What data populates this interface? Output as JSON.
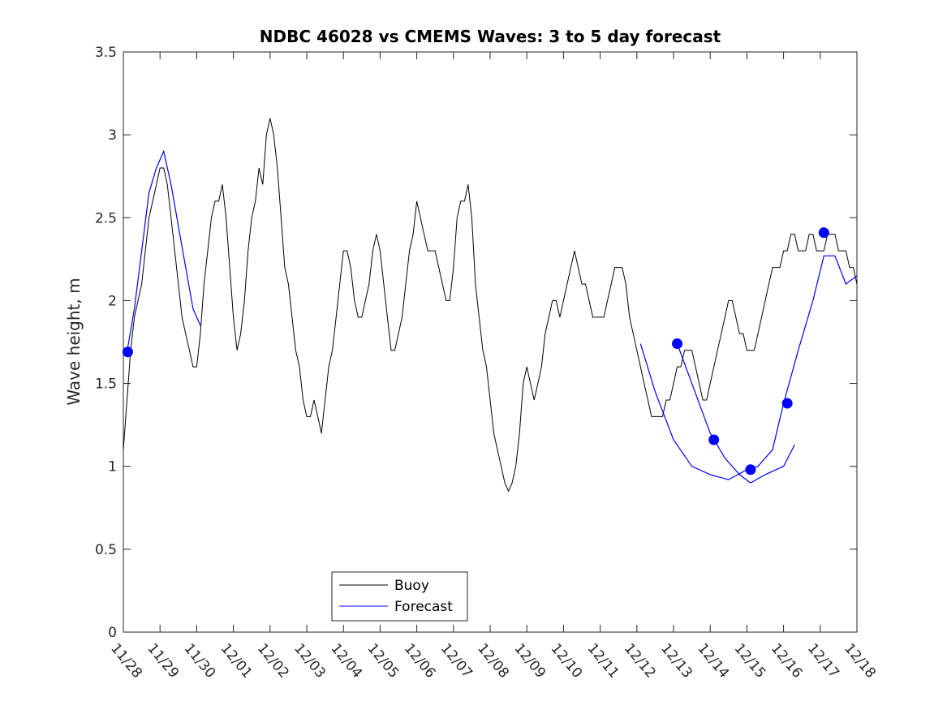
{
  "chart_data": {
    "type": "line",
    "title": "NDBC 46028 vs CMEMS Waves: 3 to 5 day forecast",
    "xlabel": "",
    "ylabel": "Wave height, m",
    "xlim": [
      0,
      20
    ],
    "ylim": [
      0,
      3.5
    ],
    "x_tick_labels": [
      "11/28",
      "11/29",
      "11/30",
      "12/01",
      "12/02",
      "12/03",
      "12/04",
      "12/05",
      "12/06",
      "12/07",
      "12/08",
      "12/09",
      "12/10",
      "12/11",
      "12/12",
      "12/13",
      "12/14",
      "12/15",
      "12/16",
      "12/17",
      "12/18"
    ],
    "y_ticks": [
      0,
      0.5,
      1,
      1.5,
      2,
      2.5,
      3,
      3.5
    ],
    "y_tick_labels": [
      "0",
      "0.5",
      "1",
      "1.5",
      "2",
      "2.5",
      "3",
      "3.5"
    ],
    "legend": {
      "placement": "bottom-center",
      "entries": [
        "Buoy",
        "Forecast"
      ]
    },
    "colors": {
      "buoy": "#000000",
      "forecast": "#0000ff"
    },
    "series": [
      {
        "name": "Buoy",
        "color": "#000000",
        "x": [
          0.0,
          0.1,
          0.2,
          0.3,
          0.4,
          0.5,
          0.6,
          0.7,
          0.8,
          0.9,
          1.0,
          1.1,
          1.2,
          1.3,
          1.4,
          1.5,
          1.6,
          1.7,
          1.8,
          1.9,
          2.0,
          2.1,
          2.2,
          2.3,
          2.4,
          2.5,
          2.6,
          2.7,
          2.8,
          2.9,
          3.0,
          3.1,
          3.2,
          3.3,
          3.4,
          3.5,
          3.6,
          3.7,
          3.8,
          3.9,
          4.0,
          4.1,
          4.2,
          4.3,
          4.4,
          4.5,
          4.6,
          4.7,
          4.8,
          4.9,
          5.0,
          5.1,
          5.2,
          5.3,
          5.4,
          5.5,
          5.6,
          5.7,
          5.8,
          5.9,
          6.0,
          6.1,
          6.2,
          6.3,
          6.4,
          6.5,
          6.6,
          6.7,
          6.8,
          6.9,
          7.0,
          7.1,
          7.2,
          7.3,
          7.4,
          7.5,
          7.6,
          7.7,
          7.8,
          7.9,
          8.0,
          8.1,
          8.2,
          8.3,
          8.4,
          8.5,
          8.6,
          8.7,
          8.8,
          8.9,
          9.0,
          9.1,
          9.2,
          9.3,
          9.4,
          9.5,
          9.6,
          9.7,
          9.8,
          9.9,
          10.0,
          10.1,
          10.2,
          10.3,
          10.4,
          10.5,
          10.6,
          10.7,
          10.8,
          10.9,
          11.0,
          11.1,
          11.2,
          11.3,
          11.4,
          11.5,
          11.6,
          11.7,
          11.8,
          11.9,
          12.0,
          12.1,
          12.2,
          12.3,
          12.4,
          12.5,
          12.6,
          12.7,
          12.8,
          12.9,
          13.0,
          13.1,
          13.2,
          13.3,
          13.4,
          13.5,
          13.6,
          13.7,
          13.8,
          13.9,
          14.0,
          14.1,
          14.2,
          14.3,
          14.4,
          14.5,
          14.6,
          14.7,
          14.8,
          14.9,
          15.0,
          15.1,
          15.2,
          15.3,
          15.4,
          15.5,
          15.6,
          15.7,
          15.8,
          15.9,
          16.0,
          16.1,
          16.2,
          16.3,
          16.4,
          16.5,
          16.6,
          16.7,
          16.8,
          16.9,
          17.0,
          17.1,
          17.2,
          17.3,
          17.4,
          17.5,
          17.6,
          17.7,
          17.8,
          17.9,
          18.0,
          18.1,
          18.2,
          18.3,
          18.4,
          18.5,
          18.6,
          18.7,
          18.8,
          18.9,
          19.0,
          19.1,
          19.2,
          19.3,
          19.4,
          19.5,
          19.6,
          19.7,
          19.8,
          19.9,
          20.0
        ],
        "values": [
          1.1,
          1.4,
          1.7,
          1.9,
          2.0,
          2.1,
          2.3,
          2.5,
          2.6,
          2.7,
          2.8,
          2.8,
          2.7,
          2.5,
          2.3,
          2.1,
          1.9,
          1.8,
          1.7,
          1.6,
          1.6,
          1.8,
          2.1,
          2.3,
          2.5,
          2.6,
          2.6,
          2.7,
          2.5,
          2.2,
          1.9,
          1.7,
          1.8,
          2.0,
          2.3,
          2.5,
          2.6,
          2.8,
          2.7,
          3.0,
          3.1,
          3.0,
          2.8,
          2.5,
          2.2,
          2.1,
          1.9,
          1.7,
          1.6,
          1.4,
          1.3,
          1.3,
          1.4,
          1.3,
          1.2,
          1.4,
          1.6,
          1.7,
          1.9,
          2.1,
          2.3,
          2.3,
          2.2,
          2.0,
          1.9,
          1.9,
          2.0,
          2.1,
          2.3,
          2.4,
          2.3,
          2.1,
          1.9,
          1.7,
          1.7,
          1.8,
          1.9,
          2.1,
          2.3,
          2.4,
          2.6,
          2.5,
          2.4,
          2.3,
          2.3,
          2.3,
          2.2,
          2.1,
          2.0,
          2.0,
          2.2,
          2.5,
          2.6,
          2.6,
          2.7,
          2.5,
          2.1,
          1.9,
          1.7,
          1.6,
          1.4,
          1.2,
          1.1,
          1.0,
          0.9,
          0.85,
          0.9,
          1.0,
          1.2,
          1.5,
          1.6,
          1.5,
          1.4,
          1.5,
          1.6,
          1.8,
          1.9,
          2.0,
          2.0,
          1.9,
          2.0,
          2.1,
          2.2,
          2.3,
          2.2,
          2.1,
          2.1,
          2.0,
          1.9,
          1.9,
          1.9,
          1.9,
          2.0,
          2.1,
          2.2,
          2.2,
          2.2,
          2.1,
          1.9,
          1.8,
          1.7,
          1.6,
          1.5,
          1.4,
          1.3,
          1.3,
          1.3,
          1.3,
          1.4,
          1.4,
          1.5,
          1.6,
          1.6,
          1.7,
          1.7,
          1.7,
          1.6,
          1.5,
          1.4,
          1.4,
          1.5,
          1.6,
          1.7,
          1.8,
          1.9,
          2.0,
          2.0,
          1.9,
          1.8,
          1.8,
          1.7,
          1.7,
          1.7,
          1.8,
          1.9,
          2.0,
          2.1,
          2.2,
          2.2,
          2.2,
          2.3,
          2.3,
          2.4,
          2.4,
          2.3,
          2.3,
          2.3,
          2.4,
          2.4,
          2.3,
          2.3,
          2.3,
          2.4,
          2.4,
          2.4,
          2.3,
          2.3,
          2.3,
          2.2,
          2.2,
          2.1
        ]
      },
      {
        "name": "Forecast",
        "color": "#0000ff",
        "x": [
          0.1,
          0.3,
          0.5,
          0.7,
          0.9,
          1.1,
          1.3,
          1.5,
          1.7,
          1.9,
          2.1
        ],
        "values": [
          1.69,
          1.95,
          2.3,
          2.65,
          2.8,
          2.9,
          2.7,
          2.45,
          2.2,
          1.95,
          1.85
        ]
      }
    ],
    "forecast_segments": [
      {
        "x": [
          0.1,
          0.3,
          0.5,
          0.7,
          0.9,
          1.1,
          1.3,
          1.5,
          1.7,
          1.9,
          2.1
        ],
        "values": [
          1.69,
          1.95,
          2.3,
          2.65,
          2.8,
          2.9,
          2.7,
          2.45,
          2.2,
          1.95,
          1.85
        ]
      },
      {
        "x": [
          15.1,
          15.5,
          16.0,
          16.4,
          16.8,
          17.1,
          17.5,
          18.0,
          18.3
        ],
        "values": [
          1.74,
          1.5,
          1.2,
          1.05,
          0.95,
          0.9,
          0.95,
          1.0,
          1.13
        ]
      },
      {
        "x": [
          14.1,
          14.5,
          15.0,
          15.5,
          16.0,
          16.5,
          17.0,
          17.3,
          17.7,
          18.0,
          18.4,
          18.8,
          19.1,
          19.4,
          19.7,
          20.0
        ],
        "values": [
          1.74,
          1.45,
          1.16,
          1.0,
          0.95,
          0.92,
          0.98,
          1.0,
          1.1,
          1.38,
          1.7,
          2.0,
          2.27,
          2.27,
          2.1,
          2.15
        ]
      }
    ],
    "forecast_markers": {
      "x": [
        0.12,
        15.1,
        16.1,
        17.1,
        18.1,
        19.1
      ],
      "values": [
        1.69,
        1.74,
        1.16,
        0.98,
        1.38,
        2.41
      ]
    }
  }
}
